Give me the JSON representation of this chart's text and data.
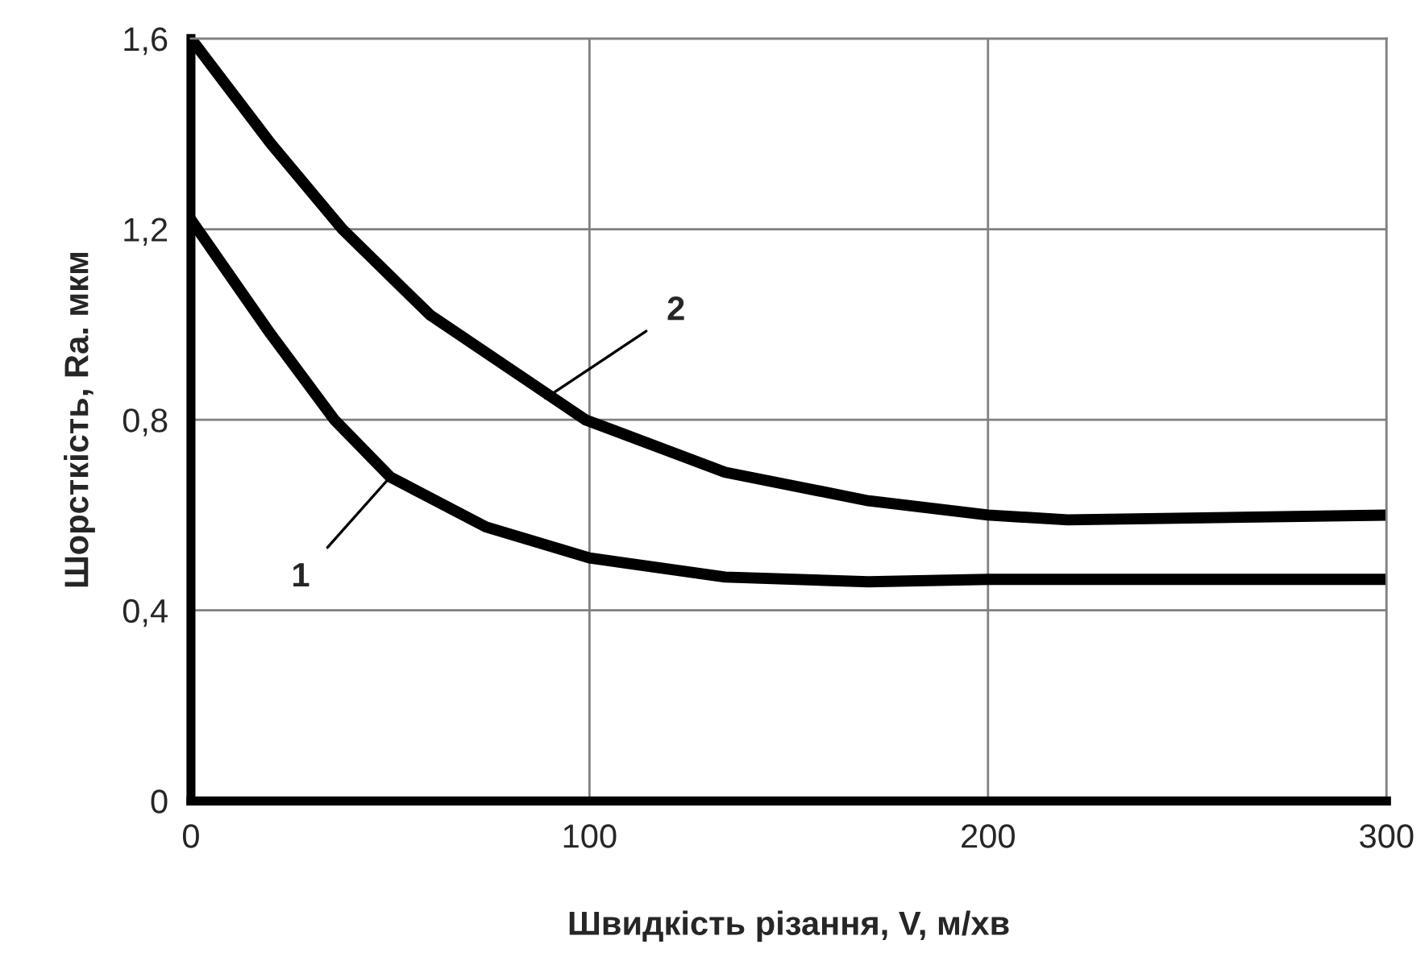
{
  "chart_data": {
    "type": "line",
    "xlabel": "Швидкість різання, V, м/хв",
    "ylabel": "Шорсткість, Ra. мкм",
    "series": [
      {
        "color": "#000000",
        "x": [
          0,
          20,
          36,
          50,
          74,
          100,
          134,
          170,
          200,
          300
        ],
        "values": [
          1.22,
          0.98,
          0.8,
          0.68,
          0.575,
          0.51,
          0.47,
          0.46,
          0.465,
          0.465
        ]
      },
      {
        "color": "#000000",
        "x": [
          0,
          20,
          38,
          60,
          99,
          134,
          170,
          200,
          220,
          300
        ],
        "values": [
          1.6,
          1.38,
          1.2,
          1.02,
          0.8,
          0.69,
          0.63,
          0.6,
          0.59,
          0.6
        ]
      }
    ],
    "annotations": [
      {
        "text": "1",
        "x": 50,
        "y": 0.68
      },
      {
        "text": "2",
        "x": 88,
        "y": 0.84
      }
    ],
    "xlim": [
      0,
      300
    ],
    "xticks": [
      0,
      100,
      200,
      300
    ],
    "ylim": [
      0,
      1.6
    ],
    "yticks": [
      0,
      {
        "value": 0.4,
        "label": "0,4"
      },
      {
        "value": 0.8,
        "label": "0,8"
      },
      {
        "value": 1.2,
        "label": "1,2"
      },
      {
        "value": 1.6,
        "label": "1,6"
      }
    ],
    "grid": true,
    "marker": "none",
    "line_style": "solid"
  }
}
